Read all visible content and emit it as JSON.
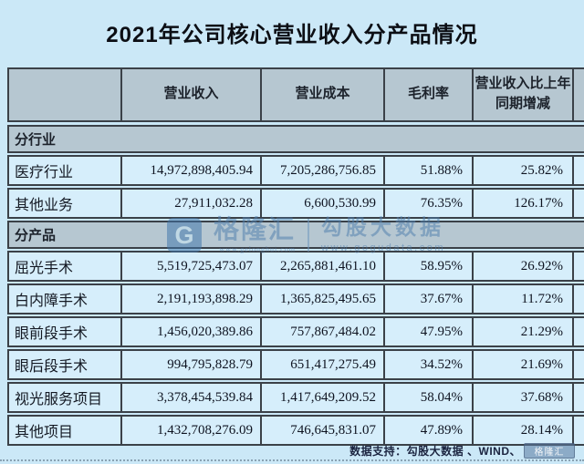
{
  "title": "2021年公司核心营业收入分产品情况",
  "table": {
    "headers": {
      "label": "",
      "revenue": "营业收入",
      "cost": "营业成本",
      "margin": "毛利率",
      "yoy": "营业收入比上年同期增减"
    },
    "section_industry": {
      "label": "分行业",
      "rows": [
        {
          "label": "医疗行业",
          "revenue": "14,972,898,405.94",
          "cost": "7,205,286,756.85",
          "margin": "51.88%",
          "yoy": "25.82%"
        },
        {
          "label": "其他业务",
          "revenue": "27,911,032.28",
          "cost": "6,600,530.99",
          "margin": "76.35%",
          "yoy": "126.17%"
        }
      ]
    },
    "section_product": {
      "label": "分产品",
      "rows": [
        {
          "label": "屈光手术",
          "revenue": "5,519,725,473.07",
          "cost": "2,265,881,461.10",
          "margin": "58.95%",
          "yoy": "26.92%"
        },
        {
          "label": "白内障手术",
          "revenue": "2,191,193,898.29",
          "cost": "1,365,825,495.65",
          "margin": "37.67%",
          "yoy": "11.72%"
        },
        {
          "label": "眼前段手术",
          "revenue": "1,456,020,389.86",
          "cost": "757,867,484.02",
          "margin": "47.95%",
          "yoy": "21.29%"
        },
        {
          "label": "眼后段手术",
          "revenue": "994,795,828.79",
          "cost": "651,417,275.49",
          "margin": "34.52%",
          "yoy": "21.69%"
        },
        {
          "label": "视光服务项目",
          "revenue": "3,378,454,539.84",
          "cost": "1,417,649,209.52",
          "margin": "58.04%",
          "yoy": "37.68%"
        },
        {
          "label": "其他项目",
          "revenue": "1,432,708,276.09",
          "cost": "746,645,831.07",
          "margin": "47.89%",
          "yoy": "28.14%"
        }
      ]
    }
  },
  "watermark": {
    "logo_letter": "G",
    "brand": "格隆汇",
    "brand_url": "www.gelonghui.com",
    "product": "勾股大数据",
    "product_url": "www.gogudata.com"
  },
  "footer": {
    "text": "数据支持：勾股大数据 、WIND、",
    "logo": "格隆汇"
  },
  "colors": {
    "page_bg": "#cbe8f7",
    "header_bg": "#b6c7d1",
    "row_bg": "#d6eefb",
    "border": "#3b4148",
    "watermark_blue": "#4f7fae"
  },
  "chart_data": {
    "type": "table",
    "title": "2021年公司核心营业收入分产品情况",
    "columns": [
      "",
      "营业收入",
      "营业成本",
      "毛利率",
      "营业收入比上年同期增减"
    ],
    "sections": [
      {
        "section": "分行业",
        "rows": [
          [
            "医疗行业",
            14972898405.94,
            7205286756.85,
            "51.88%",
            "25.82%"
          ],
          [
            "其他业务",
            27911032.28,
            6600530.99,
            "76.35%",
            "126.17%"
          ]
        ]
      },
      {
        "section": "分产品",
        "rows": [
          [
            "屈光手术",
            5519725473.07,
            2265881461.1,
            "58.95%",
            "26.92%"
          ],
          [
            "白内障手术",
            2191193898.29,
            1365825495.65,
            "37.67%",
            "11.72%"
          ],
          [
            "眼前段手术",
            1456020389.86,
            757867484.02,
            "47.95%",
            "21.29%"
          ],
          [
            "眼后段手术",
            994795828.79,
            651417275.49,
            "34.52%",
            "21.69%"
          ],
          [
            "视光服务项目",
            3378454539.84,
            1417649209.52,
            "58.04%",
            "37.68%"
          ],
          [
            "其他项目",
            1432708276.09,
            746645831.07,
            "47.89%",
            "28.14%"
          ]
        ]
      }
    ],
    "legend_position": "none",
    "grid": true
  }
}
